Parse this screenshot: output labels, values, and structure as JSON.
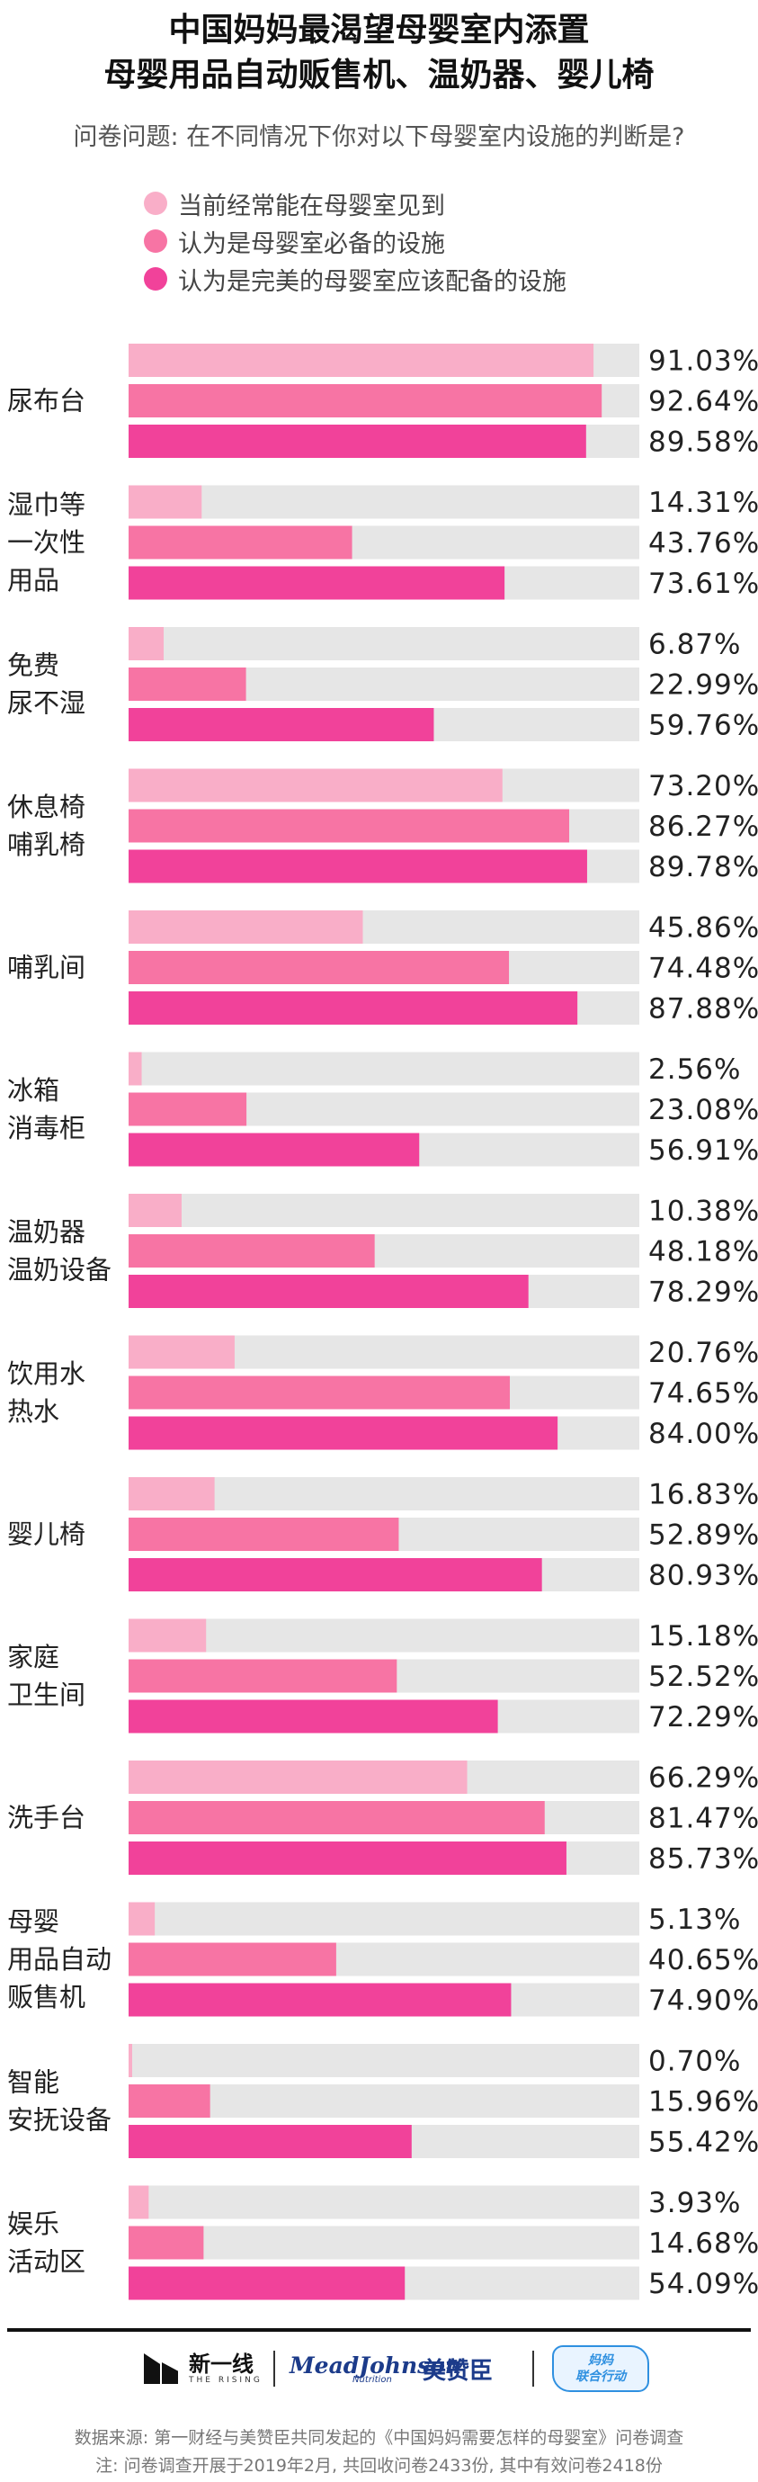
{
  "title_lines": [
    "中国妈妈最渴望母婴室内添置",
    "母婴用品自动贩售机、温奶器、婴儿椅"
  ],
  "question": "问卷问题: 在不同情况下你对以下母婴室内设施的判断是?",
  "colors": {
    "track": "#e6e6e6",
    "series": [
      "#f9aec8",
      "#f774a4",
      "#f1429a"
    ],
    "separator": "#111111"
  },
  "chart_data": {
    "type": "bar",
    "orientation": "horizontal",
    "xlim": [
      0,
      100
    ],
    "unit": "%",
    "legend_position": "top",
    "series": [
      {
        "name": "当前经常能在母婴室见到"
      },
      {
        "name": "认为是母婴室必备的设施"
      },
      {
        "name": "认为是完美的母婴室应该配备的设施"
      }
    ],
    "groups": [
      {
        "label": [
          "尿布台"
        ],
        "values": [
          91.03,
          92.64,
          89.58
        ],
        "value_labels": [
          "91.03%",
          "92.64%",
          "89.58%"
        ]
      },
      {
        "label": [
          "湿巾等",
          "一次性",
          "用品"
        ],
        "values": [
          14.31,
          43.76,
          73.61
        ],
        "value_labels": [
          "14.31%",
          "43.76%",
          "73.61%"
        ]
      },
      {
        "label": [
          "免费",
          "尿不湿"
        ],
        "values": [
          6.87,
          22.99,
          59.76
        ],
        "value_labels": [
          "6.87%",
          "22.99%",
          "59.76%"
        ]
      },
      {
        "label": [
          "休息椅",
          "哺乳椅"
        ],
        "values": [
          73.2,
          86.27,
          89.78
        ],
        "value_labels": [
          "73.20%",
          "86.27%",
          "89.78%"
        ]
      },
      {
        "label": [
          "哺乳间"
        ],
        "values": [
          45.86,
          74.48,
          87.88
        ],
        "value_labels": [
          "45.86%",
          "74.48%",
          "87.88%"
        ]
      },
      {
        "label": [
          "冰箱",
          "消毒柜"
        ],
        "values": [
          2.56,
          23.08,
          56.91
        ],
        "value_labels": [
          "2.56%",
          "23.08%",
          "56.91%"
        ]
      },
      {
        "label": [
          "温奶器",
          "温奶设备"
        ],
        "values": [
          10.38,
          48.18,
          78.29
        ],
        "value_labels": [
          "10.38%",
          "48.18%",
          "78.29%"
        ]
      },
      {
        "label": [
          "饮用水",
          "热水"
        ],
        "values": [
          20.76,
          74.65,
          84.0
        ],
        "value_labels": [
          "20.76%",
          "74.65%",
          "84.00%"
        ]
      },
      {
        "label": [
          "婴儿椅"
        ],
        "values": [
          16.83,
          52.89,
          80.93
        ],
        "value_labels": [
          "16.83%",
          "52.89%",
          "80.93%"
        ]
      },
      {
        "label": [
          "家庭",
          "卫生间"
        ],
        "values": [
          15.18,
          52.52,
          72.29
        ],
        "value_labels": [
          "15.18%",
          "52.52%",
          "72.29%"
        ]
      },
      {
        "label": [
          "洗手台"
        ],
        "values": [
          66.29,
          81.47,
          85.73
        ],
        "value_labels": [
          "66.29%",
          "81.47%",
          "85.73%"
        ]
      },
      {
        "label": [
          "母婴",
          "用品自动",
          "贩售机"
        ],
        "values": [
          5.13,
          40.65,
          74.9
        ],
        "value_labels": [
          "5.13%",
          "40.65%",
          "74.90%"
        ]
      },
      {
        "label": [
          "智能",
          "安抚设备"
        ],
        "values": [
          0.7,
          15.96,
          55.42
        ],
        "value_labels": [
          "0.70%",
          "15.96%",
          "55.42%"
        ]
      },
      {
        "label": [
          "娱乐",
          "活动区"
        ],
        "values": [
          3.93,
          14.68,
          54.09
        ],
        "value_labels": [
          "3.93%",
          "14.68%",
          "54.09%"
        ]
      }
    ]
  },
  "logos": {
    "xinyixian_cn": "新一线",
    "xinyixian_en": "THE RISING",
    "meadjohnson": "MeadJohnson",
    "meadjohnson_sub": "Nutrition",
    "meizanchen": "美赞臣",
    "mama_line1": "妈妈",
    "mama_line2": "联合行动",
    "meadjohnson_icon": "flame-icon"
  },
  "footnotes": [
    "数据来源: 第一财经与美赞臣共同发起的《中国妈妈需要怎样的母婴室》问卷调查",
    "注: 问卷调查开展于2019年2月, 共回收问卷2433份, 其中有效问卷2418份"
  ]
}
